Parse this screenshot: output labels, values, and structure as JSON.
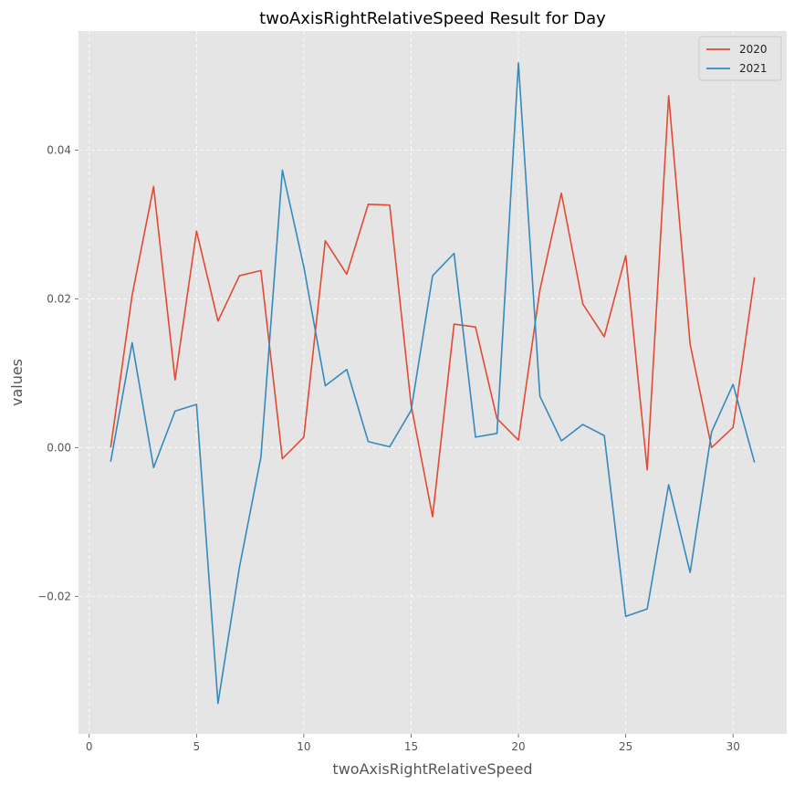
{
  "chart_data": {
    "type": "line",
    "title": "twoAxisRightRelativeSpeed Result for Day",
    "xlabel": "twoAxisRightRelativeSpeed",
    "ylabel": "values",
    "xlim": [
      -0.5,
      32.5
    ],
    "ylim": [
      -0.0385,
      0.056
    ],
    "xticks": [
      0,
      5,
      10,
      15,
      20,
      25,
      30
    ],
    "yticks": [
      -0.02,
      0.0,
      0.02,
      0.04
    ],
    "ytick_labels": [
      "−0.02",
      "0.00",
      "0.02",
      "0.04"
    ],
    "grid": true,
    "legend_position": "top-right",
    "x": [
      1,
      2,
      3,
      4,
      5,
      6,
      7,
      8,
      9,
      10,
      11,
      12,
      13,
      14,
      15,
      16,
      17,
      18,
      19,
      20,
      21,
      22,
      23,
      24,
      25,
      26,
      27,
      28,
      29,
      30,
      31
    ],
    "series": [
      {
        "name": "2020",
        "color": "#E24A33",
        "values": [
          0.0,
          0.0205,
          0.0351,
          0.0091,
          0.0291,
          0.017,
          0.0231,
          0.0238,
          -0.0015,
          0.0014,
          0.0278,
          0.0233,
          0.0327,
          0.0326,
          0.0057,
          -0.0093,
          0.0166,
          0.0162,
          0.0039,
          0.001,
          0.0212,
          0.0342,
          0.0193,
          0.0149,
          0.0258,
          -0.003,
          0.0473,
          0.0139,
          0.0,
          0.0027,
          0.0229
        ]
      },
      {
        "name": "2021",
        "color": "#348ABD",
        "values": [
          -0.0019,
          0.0141,
          -0.0027,
          0.0049,
          0.0058,
          -0.0344,
          -0.0161,
          -0.0013,
          0.0373,
          0.0243,
          0.0083,
          0.0105,
          0.0008,
          0.0001,
          0.005,
          0.0231,
          0.0261,
          0.0014,
          0.0019,
          0.0517,
          0.0069,
          0.0009,
          0.0031,
          0.0016,
          -0.0227,
          -0.0217,
          -0.005,
          -0.0168,
          0.0021,
          0.0085,
          -0.002
        ]
      }
    ]
  }
}
